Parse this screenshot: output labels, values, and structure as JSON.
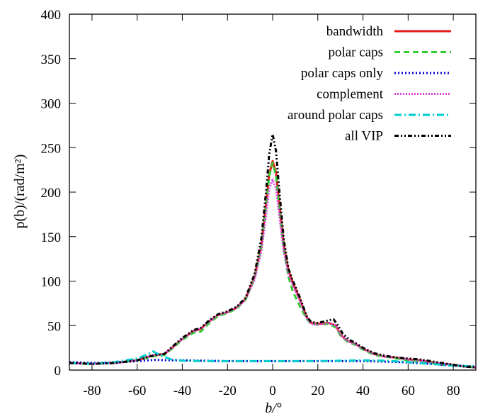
{
  "chart_data": {
    "type": "line",
    "title": "",
    "xlabel": "b/°",
    "ylabel": "p(b)/(rad/m²)",
    "xlim": [
      -90,
      90
    ],
    "ylim": [
      0,
      400
    ],
    "xticks": [
      -80,
      -60,
      -40,
      -20,
      0,
      20,
      40,
      60,
      80
    ],
    "yticks": [
      0,
      50,
      100,
      150,
      200,
      250,
      300,
      350,
      400
    ],
    "grid": false,
    "legend_position": "top-right",
    "series": [
      {
        "name": "bandwidth",
        "color": "#e41a1c",
        "dash": "solid",
        "points": [
          [
            -90,
            8
          ],
          [
            -80,
            7
          ],
          [
            -70,
            8
          ],
          [
            -60,
            11
          ],
          [
            -55,
            15
          ],
          [
            -52,
            17
          ],
          [
            -48,
            18
          ],
          [
            -45,
            24
          ],
          [
            -40,
            35
          ],
          [
            -35,
            44
          ],
          [
            -32,
            46
          ],
          [
            -28,
            55
          ],
          [
            -24,
            62
          ],
          [
            -20,
            65
          ],
          [
            -16,
            70
          ],
          [
            -12,
            80
          ],
          [
            -8,
            105
          ],
          [
            -5,
            140
          ],
          [
            -3,
            185
          ],
          [
            -1.5,
            220
          ],
          [
            0,
            235
          ],
          [
            1.5,
            222
          ],
          [
            3,
            185
          ],
          [
            5,
            140
          ],
          [
            7,
            112
          ],
          [
            9,
            98
          ],
          [
            12,
            80
          ],
          [
            15,
            60
          ],
          [
            17,
            53
          ],
          [
            20,
            52
          ],
          [
            25,
            53
          ],
          [
            28,
            50
          ],
          [
            30,
            40
          ],
          [
            33,
            33
          ],
          [
            37,
            29
          ],
          [
            40,
            24
          ],
          [
            45,
            18
          ],
          [
            50,
            15
          ],
          [
            55,
            14
          ],
          [
            60,
            12
          ],
          [
            65,
            11
          ],
          [
            70,
            9
          ],
          [
            75,
            7
          ],
          [
            80,
            6
          ],
          [
            85,
            4
          ],
          [
            90,
            3
          ]
        ]
      },
      {
        "name": "polar caps",
        "color": "#33cc33",
        "dash": "8,5",
        "points": [
          [
            -90,
            8
          ],
          [
            -80,
            7
          ],
          [
            -70,
            8
          ],
          [
            -60,
            11
          ],
          [
            -55,
            14
          ],
          [
            -52,
            16
          ],
          [
            -48,
            17
          ],
          [
            -45,
            23
          ],
          [
            -40,
            34
          ],
          [
            -35,
            42
          ],
          [
            -32,
            43
          ],
          [
            -28,
            53
          ],
          [
            -24,
            61
          ],
          [
            -20,
            64
          ],
          [
            -16,
            69
          ],
          [
            -12,
            79
          ],
          [
            -8,
            103
          ],
          [
            -5,
            138
          ],
          [
            -3,
            182
          ],
          [
            -1.5,
            218
          ],
          [
            0,
            233
          ],
          [
            1.5,
            218
          ],
          [
            3,
            180
          ],
          [
            5,
            134
          ],
          [
            7,
            105
          ],
          [
            9,
            88
          ],
          [
            12,
            72
          ],
          [
            15,
            58
          ],
          [
            17,
            52
          ],
          [
            20,
            51
          ],
          [
            25,
            52
          ],
          [
            28,
            48
          ],
          [
            30,
            39
          ],
          [
            33,
            32
          ],
          [
            37,
            28
          ],
          [
            40,
            23
          ],
          [
            45,
            17
          ],
          [
            50,
            15
          ],
          [
            55,
            13
          ],
          [
            60,
            11
          ],
          [
            65,
            10
          ],
          [
            70,
            8
          ],
          [
            75,
            6
          ],
          [
            80,
            5
          ],
          [
            85,
            4
          ],
          [
            90,
            3
          ]
        ]
      },
      {
        "name": "polar caps only",
        "color": "#0000cc",
        "dash": "2,3",
        "points": [
          [
            -90,
            9
          ],
          [
            -80,
            8
          ],
          [
            -70,
            8.5
          ],
          [
            -60,
            10
          ],
          [
            -52,
            11.5
          ],
          [
            -45,
            11
          ],
          [
            -40,
            11
          ],
          [
            -30,
            10.5
          ],
          [
            -20,
            10
          ],
          [
            -10,
            10
          ],
          [
            0,
            10
          ],
          [
            10,
            10
          ],
          [
            20,
            10
          ],
          [
            30,
            10
          ],
          [
            40,
            10
          ],
          [
            50,
            9.5
          ],
          [
            60,
            8.5
          ],
          [
            70,
            7
          ],
          [
            80,
            5
          ],
          [
            90,
            4
          ]
        ]
      },
      {
        "name": "complement",
        "color": "#e040e0",
        "dash": "2,2",
        "points": [
          [
            -90,
            8
          ],
          [
            -80,
            7
          ],
          [
            -70,
            8
          ],
          [
            -60,
            11
          ],
          [
            -55,
            15
          ],
          [
            -52,
            17
          ],
          [
            -48,
            18
          ],
          [
            -45,
            24
          ],
          [
            -40,
            35
          ],
          [
            -35,
            44
          ],
          [
            -32,
            46
          ],
          [
            -28,
            55
          ],
          [
            -24,
            62
          ],
          [
            -20,
            65
          ],
          [
            -16,
            70
          ],
          [
            -12,
            79
          ],
          [
            -8,
            102
          ],
          [
            -5,
            134
          ],
          [
            -3,
            172
          ],
          [
            -1.5,
            204
          ],
          [
            0,
            214
          ],
          [
            1.5,
            204
          ],
          [
            3,
            172
          ],
          [
            5,
            133
          ],
          [
            7,
            108
          ],
          [
            9,
            95
          ],
          [
            12,
            78
          ],
          [
            15,
            59
          ],
          [
            17,
            52
          ],
          [
            20,
            51
          ],
          [
            25,
            53
          ],
          [
            28,
            50
          ],
          [
            30,
            40
          ],
          [
            33,
            33
          ],
          [
            37,
            29
          ],
          [
            40,
            24
          ],
          [
            45,
            18
          ],
          [
            50,
            15
          ],
          [
            55,
            14
          ],
          [
            60,
            12
          ],
          [
            65,
            11
          ],
          [
            70,
            9
          ],
          [
            75,
            7
          ],
          [
            80,
            6
          ],
          [
            85,
            4
          ],
          [
            90,
            3
          ]
        ]
      },
      {
        "name": "around polar caps",
        "color": "#00cccc",
        "dash": "10,4,2,4",
        "points": [
          [
            -90,
            8
          ],
          [
            -80,
            7
          ],
          [
            -70,
            9
          ],
          [
            -60,
            13
          ],
          [
            -55,
            18
          ],
          [
            -53,
            21
          ],
          [
            -50,
            17
          ],
          [
            -45,
            12
          ],
          [
            -40,
            10.5
          ],
          [
            -30,
            10
          ],
          [
            -20,
            10
          ],
          [
            -10,
            10
          ],
          [
            0,
            10
          ],
          [
            10,
            10
          ],
          [
            20,
            10
          ],
          [
            30,
            10.5
          ],
          [
            40,
            11
          ],
          [
            50,
            10.5
          ],
          [
            60,
            9
          ],
          [
            70,
            7
          ],
          [
            80,
            5
          ],
          [
            90,
            4
          ]
        ]
      },
      {
        "name": "all VIP",
        "color": "#000000",
        "dash": "6,3,2,3,2,3",
        "points": [
          [
            -90,
            8
          ],
          [
            -80,
            7
          ],
          [
            -70,
            8
          ],
          [
            -60,
            11
          ],
          [
            -55,
            15
          ],
          [
            -52,
            17
          ],
          [
            -48,
            18
          ],
          [
            -45,
            25
          ],
          [
            -40,
            36
          ],
          [
            -35,
            45
          ],
          [
            -32,
            47
          ],
          [
            -28,
            56
          ],
          [
            -24,
            63
          ],
          [
            -20,
            66
          ],
          [
            -16,
            71
          ],
          [
            -12,
            81
          ],
          [
            -8,
            108
          ],
          [
            -5,
            148
          ],
          [
            -3,
            198
          ],
          [
            -1.5,
            243
          ],
          [
            0,
            265
          ],
          [
            1.5,
            246
          ],
          [
            3,
            200
          ],
          [
            5,
            146
          ],
          [
            7,
            114
          ],
          [
            9,
            100
          ],
          [
            12,
            82
          ],
          [
            15,
            61
          ],
          [
            17,
            54
          ],
          [
            20,
            53
          ],
          [
            25,
            56
          ],
          [
            27,
            57
          ],
          [
            29,
            50
          ],
          [
            31,
            41
          ],
          [
            34,
            34
          ],
          [
            37,
            30
          ],
          [
            40,
            25
          ],
          [
            45,
            19
          ],
          [
            50,
            16
          ],
          [
            55,
            14
          ],
          [
            60,
            13
          ],
          [
            65,
            12
          ],
          [
            70,
            10
          ],
          [
            75,
            8
          ],
          [
            80,
            6
          ],
          [
            85,
            4
          ],
          [
            90,
            3
          ]
        ]
      }
    ]
  }
}
